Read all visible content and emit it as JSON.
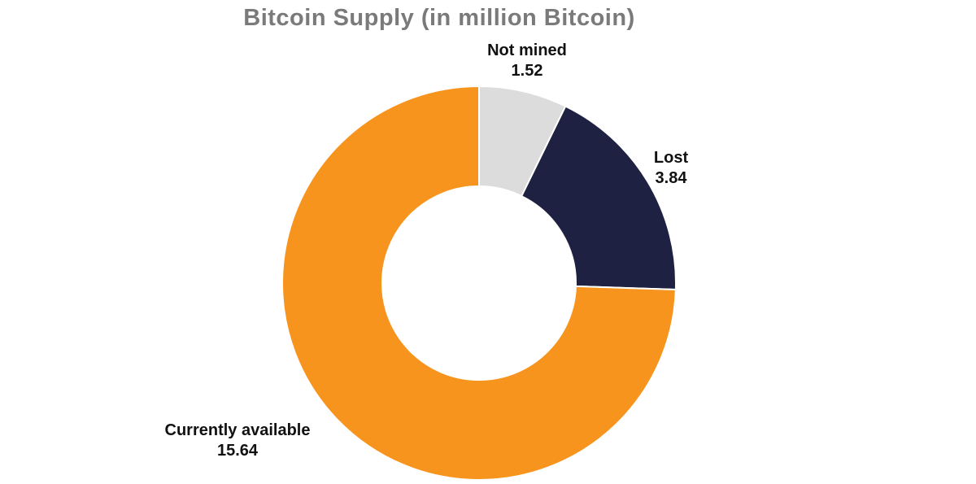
{
  "chart_data": {
    "type": "pie",
    "variant": "donut",
    "title": "Bitcoin Supply (in million Bitcoin)",
    "unit": "million Bitcoin",
    "total": 21.0,
    "start_angle_deg": 0,
    "direction": "clockwise",
    "hole_ratio": 0.49,
    "legend": "none",
    "segments": [
      {
        "label": "Not mined",
        "value": 1.52,
        "color": "#DCDCDC"
      },
      {
        "label": "Lost",
        "value": 3.84,
        "color": "#1E2142"
      },
      {
        "label": "Currently available",
        "value": 15.64,
        "color": "#F7941E"
      }
    ],
    "colors": {
      "title_text": "#7A7A7A",
      "label_text": "#111111",
      "background": "#FFFFFF",
      "segment_gap_stroke": "#FFFFFF"
    }
  }
}
